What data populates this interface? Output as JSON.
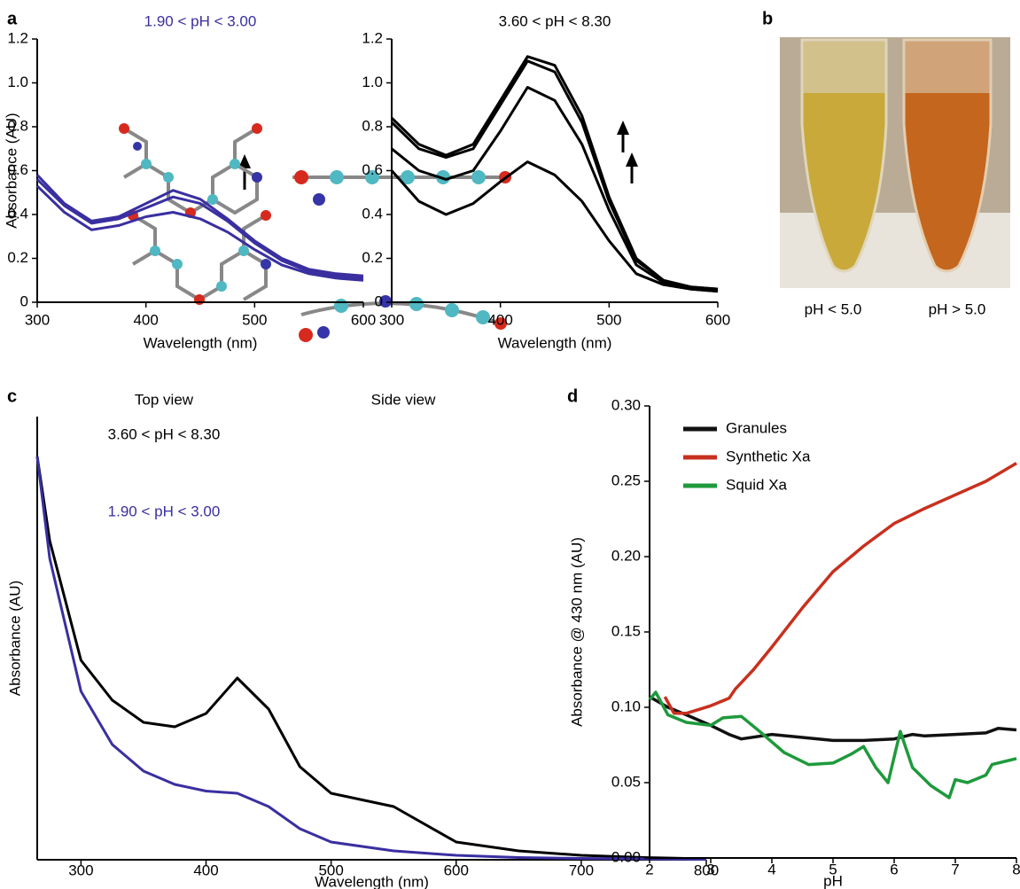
{
  "panel_labels": [
    "a",
    "b",
    "c",
    "d"
  ],
  "photo_labels": [
    "pH < 5.0",
    "pH > 5.0"
  ],
  "chart_data": [
    {
      "type": "line",
      "title": "1.90 < pH < 3.00",
      "title_color": "#3a2fa0",
      "x_label": "Wavelength (nm)",
      "y_label": "Absorbance (AU)",
      "x": [
        300,
        325,
        350,
        375,
        400,
        425,
        450,
        475,
        500,
        525,
        550,
        575,
        600
      ],
      "xlim": [
        300,
        600
      ],
      "xticks": [
        300,
        400,
        500,
        600
      ],
      "ylim": [
        0,
        1.2
      ],
      "yticks": [
        0,
        0.2,
        0.4,
        0.6,
        0.8,
        {
          "value": 1,
          "label": "1.0"
        },
        1.2
      ],
      "series": [
        {
          "color": "#3a2fa0",
          "values": [
            0.58,
            0.45,
            0.37,
            0.39,
            0.45,
            0.51,
            0.47,
            0.38,
            0.28,
            0.2,
            0.15,
            0.13,
            0.12
          ]
        },
        {
          "color": "#3a2fa0",
          "values": [
            0.56,
            0.44,
            0.36,
            0.38,
            0.43,
            0.48,
            0.45,
            0.37,
            0.27,
            0.19,
            0.14,
            0.12,
            0.11
          ]
        },
        {
          "color": "#3a2fa0",
          "values": [
            0.53,
            0.41,
            0.33,
            0.35,
            0.39,
            0.41,
            0.38,
            0.32,
            0.24,
            0.17,
            0.13,
            0.11,
            0.1
          ]
        }
      ]
    },
    {
      "type": "line",
      "title": "3.60 < pH < 8.30",
      "title_color": "#000000",
      "x_label": "Wavelength (nm)",
      "x": [
        300,
        325,
        350,
        375,
        400,
        425,
        450,
        475,
        500,
        525,
        550,
        575,
        600
      ],
      "xlim": [
        300,
        600
      ],
      "xticks": [
        300,
        400,
        500,
        600
      ],
      "ylim": [
        0,
        1.2
      ],
      "yticks": [
        0,
        0.2,
        0.4,
        0.6,
        0.8,
        {
          "value": 1,
          "label": "1.0"
        },
        1.2
      ],
      "series": [
        {
          "color": "#000000",
          "values": [
            0.84,
            0.72,
            0.67,
            0.72,
            0.92,
            1.12,
            1.08,
            0.85,
            0.48,
            0.2,
            0.1,
            0.07,
            0.06
          ]
        },
        {
          "color": "#000000",
          "values": [
            0.82,
            0.7,
            0.66,
            0.7,
            0.9,
            1.1,
            1.05,
            0.82,
            0.46,
            0.19,
            0.1,
            0.07,
            0.06
          ]
        },
        {
          "color": "#000000",
          "values": [
            0.7,
            0.6,
            0.56,
            0.6,
            0.78,
            0.98,
            0.92,
            0.72,
            0.42,
            0.17,
            0.09,
            0.06,
            0.05
          ]
        },
        {
          "color": "#000000",
          "values": [
            0.6,
            0.46,
            0.4,
            0.45,
            0.55,
            0.64,
            0.58,
            0.46,
            0.28,
            0.13,
            0.08,
            0.06,
            0.05
          ]
        }
      ]
    },
    {
      "type": "line",
      "x_label": "Wavelength (nm)",
      "y_label": "Absorbance (AU)",
      "annotations": [
        "Top view",
        "Side view",
        "3.60 < pH < 8.30",
        "1.90 < pH < 3.00"
      ],
      "x": [
        265,
        275,
        300,
        325,
        350,
        375,
        400,
        425,
        450,
        475,
        500,
        550,
        600,
        650,
        700,
        750,
        800
      ],
      "xlim": [
        265,
        800
      ],
      "xticks": [
        300,
        400,
        500,
        600,
        700,
        800
      ],
      "ylim": [
        0,
        1
      ],
      "series": [
        {
          "color": "#000000",
          "values": [
            0.91,
            0.72,
            0.45,
            0.36,
            0.31,
            0.3,
            0.33,
            0.41,
            0.34,
            0.21,
            0.15,
            0.12,
            0.04,
            0.02,
            0.01,
            0.005,
            0.002
          ]
        },
        {
          "color": "#3a2fa0",
          "values": [
            0.91,
            0.68,
            0.38,
            0.26,
            0.2,
            0.17,
            0.155,
            0.15,
            0.12,
            0.07,
            0.04,
            0.02,
            0.01,
            0.005,
            0.003,
            0.002,
            0.001
          ]
        }
      ]
    },
    {
      "type": "line",
      "x_label": "pH",
      "y_label": "Absorbance @ 430 nm (AU)",
      "xlim": [
        2,
        8
      ],
      "xticks": [
        2,
        3,
        4,
        5,
        6,
        7,
        8
      ],
      "ylim": [
        0,
        0.3
      ],
      "yticks": [
        {
          "value": 0,
          "label": "0.00"
        },
        {
          "value": 0.05,
          "label": "0.05"
        },
        {
          "value": 0.1,
          "label": "0.10"
        },
        {
          "value": 0.15,
          "label": "0.15"
        },
        {
          "value": 0.2,
          "label": "0.20"
        },
        {
          "value": 0.25,
          "label": "0.25"
        },
        {
          "value": 0.3,
          "label": "0.30"
        }
      ],
      "legend": "upper left",
      "series": [
        {
          "name": "Granules",
          "color": "#111111",
          "x": [
            2,
            2.3,
            2.6,
            3,
            3.3,
            3.5,
            4,
            4.5,
            5,
            5.5,
            6,
            6.3,
            6.5,
            7,
            7.5,
            7.7,
            8
          ],
          "values": [
            0.107,
            0.1,
            0.095,
            0.088,
            0.082,
            0.079,
            0.082,
            0.08,
            0.078,
            0.078,
            0.079,
            0.082,
            0.081,
            0.082,
            0.083,
            0.086,
            0.085
          ]
        },
        {
          "name": "Synthetic Xa",
          "color": "#c8301e",
          "x": [
            2.25,
            2.4,
            2.6,
            3,
            3.3,
            3.4,
            3.7,
            4,
            4.5,
            5,
            5.5,
            6,
            6.5,
            7,
            7.5,
            8
          ],
          "values": [
            0.107,
            0.096,
            0.096,
            0.101,
            0.106,
            0.112,
            0.125,
            0.14,
            0.166,
            0.19,
            0.207,
            0.222,
            0.232,
            0.241,
            0.25,
            0.262
          ]
        },
        {
          "name": "Squid Xa",
          "color": "#1e9a3c",
          "x": [
            2,
            2.1,
            2.3,
            2.6,
            3,
            3.2,
            3.5,
            3.8,
            4.2,
            4.6,
            5,
            5.3,
            5.5,
            5.7,
            5.9,
            6.1,
            6.3,
            6.6,
            6.9,
            7,
            7.2,
            7.5,
            7.6,
            8
          ],
          "values": [
            0.105,
            0.11,
            0.095,
            0.09,
            0.088,
            0.093,
            0.094,
            0.084,
            0.07,
            0.062,
            0.063,
            0.069,
            0.074,
            0.06,
            0.05,
            0.084,
            0.06,
            0.048,
            0.04,
            0.052,
            0.05,
            0.055,
            0.062,
            0.066
          ]
        }
      ]
    }
  ]
}
